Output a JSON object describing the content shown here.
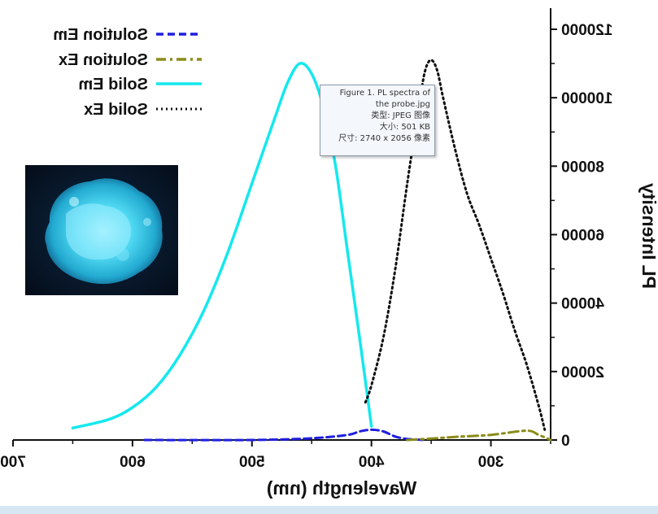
{
  "chart_data": {
    "type": "line",
    "mirrored": true,
    "xlabel": "Wavelength (nm)",
    "ylabel": "PL Intensity",
    "xlim": [
      700,
      250
    ],
    "ylim": [
      0,
      120000
    ],
    "x_ticks": [
      700,
      600,
      500,
      400,
      300
    ],
    "y_ticks": [
      0,
      20000,
      40000,
      60000,
      80000,
      100000,
      120000
    ],
    "x_tick_labels": [
      "700",
      "600",
      "500",
      "400",
      "300"
    ],
    "y_tick_labels": [
      "0",
      "20000",
      "40000",
      "60000",
      "80000",
      "100000",
      "120000"
    ],
    "legend_position": "top-left",
    "series": [
      {
        "name": "Solution Em",
        "color": "#1f1fe0",
        "style": "dashed",
        "x": [
          590,
          500,
          450,
          420,
          410,
          400,
          390,
          380,
          370,
          355
        ],
        "y": [
          0,
          0,
          500,
          1500,
          2500,
          3000,
          2500,
          1000,
          300,
          0
        ]
      },
      {
        "name": "Solution Ex",
        "color": "#8b8b1a",
        "style": "dash-dot",
        "x": [
          370,
          350,
          330,
          300,
          270,
          260,
          250
        ],
        "y": [
          0,
          400,
          900,
          1500,
          2700,
          1500,
          0
        ]
      },
      {
        "name": "Solid Em",
        "color": "#14e8ee",
        "style": "solid",
        "x": [
          650,
          620,
          600,
          580,
          560,
          540,
          520,
          500,
          480,
          470,
          460,
          450,
          440,
          430,
          420,
          410,
          400
        ],
        "y": [
          3500,
          6000,
          9500,
          15500,
          25000,
          38000,
          55000,
          75000,
          95000,
          104500,
          110000,
          107000,
          97000,
          80000,
          55000,
          30000,
          4000
        ]
      },
      {
        "name": "Solid Ex",
        "color": "#111111",
        "style": "dotted",
        "x": [
          405,
          400,
          390,
          380,
          370,
          360,
          355,
          350,
          345,
          340,
          330,
          320,
          310,
          300,
          290,
          280,
          270,
          260,
          255
        ],
        "y": [
          11000,
          16000,
          30000,
          50000,
          75000,
          98000,
          108000,
          111000,
          108000,
          100000,
          85000,
          72000,
          63000,
          53000,
          43000,
          32000,
          22000,
          10000,
          3000
        ]
      }
    ]
  },
  "tooltip": {
    "lines": [
      "Figure 1. PL spectra of",
      "the probe.jpg",
      "类型: JPEG 图像",
      "大小: 501 KB",
      "尺寸: 2740 x 2056 像素"
    ]
  }
}
